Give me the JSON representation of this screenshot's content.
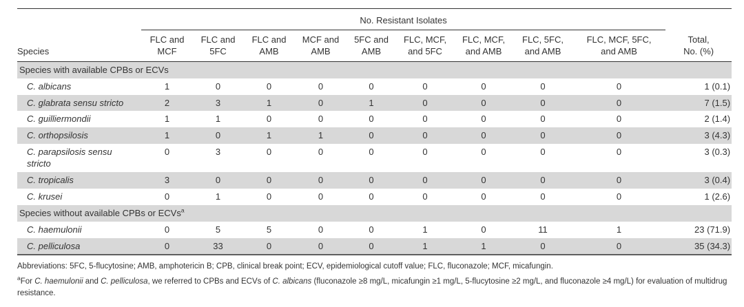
{
  "table": {
    "spanner": "No. Resistant Isolates",
    "species_header": "Species",
    "columns": [
      [
        "FLC and",
        "MCF"
      ],
      [
        "FLC and",
        "5FC"
      ],
      [
        "FLC and",
        "AMB"
      ],
      [
        "MCF and",
        "AMB"
      ],
      [
        "5FC and",
        "AMB"
      ],
      [
        "FLC, MCF,",
        "and 5FC"
      ],
      [
        "FLC, MCF,",
        "and AMB"
      ],
      [
        "FLC, 5FC,",
        "and AMB"
      ],
      [
        "FLC, MCF, 5FC,",
        "and AMB"
      ]
    ],
    "total_header": [
      "Total,",
      "No. (%)"
    ],
    "rows": [
      {
        "type": "section",
        "label": "Species with available CPBs or ECVs",
        "sup": ""
      },
      {
        "type": "species",
        "name": "C. albicans",
        "values": [
          "1",
          "0",
          "0",
          "0",
          "0",
          "0",
          "0",
          "0",
          "0"
        ],
        "total": "1 (0.1)"
      },
      {
        "type": "species",
        "name": "C. glabrata sensu stricto",
        "values": [
          "2",
          "3",
          "1",
          "0",
          "1",
          "0",
          "0",
          "0",
          "0"
        ],
        "total": "7 (1.5)"
      },
      {
        "type": "species",
        "name": "C. guilliermondii",
        "values": [
          "1",
          "1",
          "0",
          "0",
          "0",
          "0",
          "0",
          "0",
          "0"
        ],
        "total": "2 (1.4)"
      },
      {
        "type": "species",
        "name": "C. orthopsilosis",
        "values": [
          "1",
          "0",
          "1",
          "1",
          "0",
          "0",
          "0",
          "0",
          "0"
        ],
        "total": "3 (4.3)"
      },
      {
        "type": "species",
        "name": "C. parapsilosis sensu stricto",
        "values": [
          "0",
          "3",
          "0",
          "0",
          "0",
          "0",
          "0",
          "0",
          "0"
        ],
        "total": "3 (0.3)"
      },
      {
        "type": "species",
        "name": "C. tropicalis",
        "values": [
          "3",
          "0",
          "0",
          "0",
          "0",
          "0",
          "0",
          "0",
          "0"
        ],
        "total": "3 (0.4)"
      },
      {
        "type": "species",
        "name": "C. krusei",
        "values": [
          "0",
          "1",
          "0",
          "0",
          "0",
          "0",
          "0",
          "0",
          "0"
        ],
        "total": "1 (2.6)"
      },
      {
        "type": "section",
        "label": "Species without available CPBs or ECVs",
        "sup": "a"
      },
      {
        "type": "species",
        "name": "C. haemulonii",
        "values": [
          "0",
          "5",
          "5",
          "0",
          "0",
          "1",
          "0",
          "11",
          "1"
        ],
        "total": "23 (71.9)"
      },
      {
        "type": "species",
        "name": "C. pelliculosa",
        "values": [
          "0",
          "33",
          "0",
          "0",
          "0",
          "1",
          "1",
          "0",
          "0"
        ],
        "total": "35 (34.3)"
      }
    ]
  },
  "footnotes": {
    "abbreviations": "Abbreviations: 5FC, 5-flucytosine; AMB, amphotericin B; CPB, clinical break point; ECV, epidemiological cutoff value; FLC, fluconazole; MCF, micafungin.",
    "note_a": {
      "marker": "a",
      "segments": [
        {
          "t": "For "
        },
        {
          "t": "C. haemulonii",
          "i": true
        },
        {
          "t": " and "
        },
        {
          "t": "C. pelliculosa",
          "i": true
        },
        {
          "t": ", we referred to CPBs and ECVs of "
        },
        {
          "t": "C. albicans",
          "i": true
        },
        {
          "t": " (fluconazole ≥8 mg/L, micafungin ≥1 mg/L, 5-flucytosine ≥2 mg/L, and fluconazole ≥4 mg/L) for evaluation of multidrug resistance."
        }
      ]
    }
  },
  "colors": {
    "stripe": "#d8d8d8",
    "text": "#333333",
    "rule": "#333333"
  }
}
